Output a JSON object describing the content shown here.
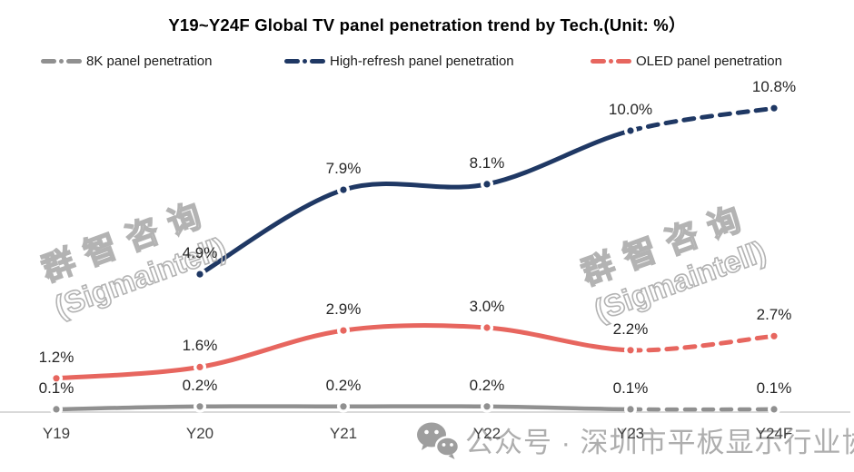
{
  "title": "Y19~Y24F Global TV panel penetration trend by Tech.(Unit: %）",
  "legend": [
    {
      "label": "8K panel penetration",
      "color": "#909090"
    },
    {
      "label": "High-refresh panel penetration",
      "color": "#1F3864"
    },
    {
      "label": "OLED panel penetration",
      "color": "#E7665F"
    }
  ],
  "watermark": {
    "line1": "群智咨询",
    "line2": "(Sigmaintell)"
  },
  "footer": {
    "icon": "wechat-icon",
    "text": "公众号 · 深圳市平板显示行业协会"
  },
  "chart_data": {
    "type": "line",
    "title": "Y19~Y24F Global TV panel penetration trend by Tech.(Unit: %)",
    "categories": [
      "Y19",
      "Y20",
      "Y21",
      "Y22",
      "Y23",
      "Y24F"
    ],
    "series": [
      {
        "name": "8K panel penetration",
        "color": "#909090",
        "values": [
          0.1,
          0.2,
          0.2,
          0.2,
          0.1,
          0.1
        ],
        "labels": [
          "0.1%",
          "0.2%",
          "0.2%",
          "0.2%",
          "0.1%",
          "0.1%"
        ],
        "forecast_from": "Y23"
      },
      {
        "name": "High-refresh panel penetration",
        "color": "#1F3864",
        "values": [
          null,
          4.9,
          7.9,
          8.1,
          10.0,
          10.8
        ],
        "labels": [
          null,
          "4.9%",
          "7.9%",
          "8.1%",
          "10.0%",
          "10.8%"
        ],
        "forecast_from": "Y23"
      },
      {
        "name": "OLED panel penetration",
        "color": "#E7665F",
        "values": [
          1.2,
          1.6,
          2.9,
          3.0,
          2.2,
          2.7
        ],
        "labels": [
          "1.2%",
          "1.6%",
          "2.9%",
          "3.0%",
          "2.2%",
          "2.7%"
        ],
        "forecast_from": "Y23"
      }
    ],
    "unit": "%",
    "ylim": [
      0,
      12
    ],
    "grid": false,
    "line_style": "smooth, dashed after Y23 (forecast)",
    "legend_position": "top"
  }
}
